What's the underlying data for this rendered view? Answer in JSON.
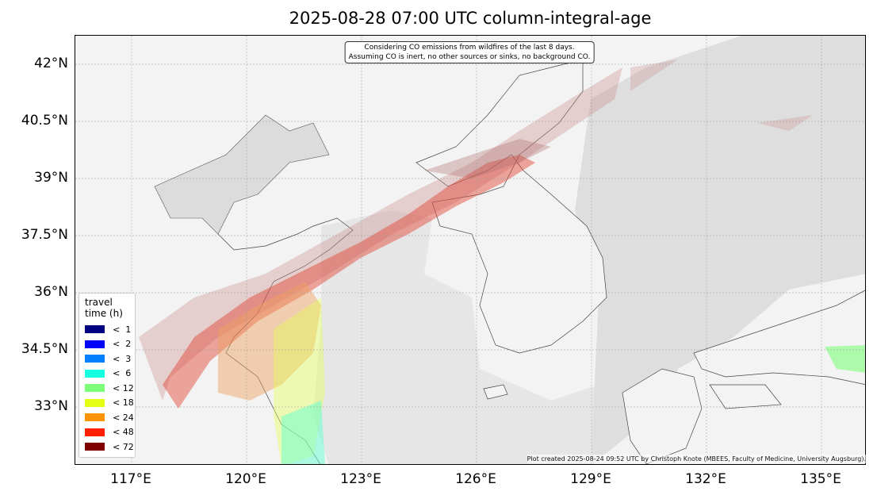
{
  "title": "2025-08-28 07:00 UTC column-integral-age",
  "annotation": {
    "line1": "Considering CO emissions from wildfires of the last 8 days.",
    "line2": "Assuming CO is inert, no other sources or sinks, no background CO."
  },
  "credit": "Plot created 2025-08-24 09:52 UTC by Christoph Knote (MBEES, Faculty of Medicine, University Augsburg).",
  "map": {
    "extent_lon": [
      115.5,
      136.2
    ],
    "extent_lat": [
      31.5,
      42.75
    ],
    "land_color": "#f3f3f3",
    "sea_color": "#dedede",
    "plume_main_color": "#e0402f"
  },
  "lat_ticks": [
    {
      "value": 42,
      "label": "42°N"
    },
    {
      "value": 40.5,
      "label": "40.5°N"
    },
    {
      "value": 39,
      "label": "39°N"
    },
    {
      "value": 37.5,
      "label": "37.5°N"
    },
    {
      "value": 36,
      "label": "36°N"
    },
    {
      "value": 34.5,
      "label": "34.5°N"
    },
    {
      "value": 33,
      "label": "33°N"
    }
  ],
  "lon_ticks": [
    {
      "value": 117,
      "label": "117°E"
    },
    {
      "value": 120,
      "label": "120°E"
    },
    {
      "value": 123,
      "label": "123°E"
    },
    {
      "value": 126,
      "label": "126°E"
    },
    {
      "value": 129,
      "label": "129°E"
    },
    {
      "value": 132,
      "label": "132°E"
    },
    {
      "value": 135,
      "label": "135°E"
    }
  ],
  "legend": {
    "title_line1": "travel",
    "title_line2": "time (h)",
    "items": [
      {
        "label": "<  1",
        "color": "#000080"
      },
      {
        "label": "<  2",
        "color": "#0000ff"
      },
      {
        "label": "<  3",
        "color": "#0080ff"
      },
      {
        "label": "<  6",
        "color": "#15ffe1"
      },
      {
        "label": "< 12",
        "color": "#7dff7a"
      },
      {
        "label": "< 18",
        "color": "#e4ff13"
      },
      {
        "label": "< 24",
        "color": "#ff9400"
      },
      {
        "label": "< 48",
        "color": "#ff1e00"
      },
      {
        "label": "< 72",
        "color": "#800000"
      }
    ]
  }
}
